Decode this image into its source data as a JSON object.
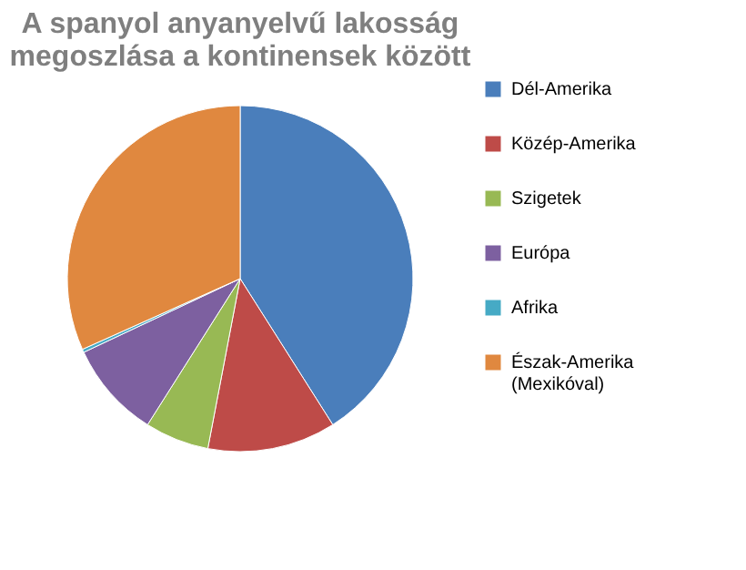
{
  "chart_data": {
    "type": "pie",
    "title": "A spanyol anyanyelvű lakosság megoszlása a kontinensek között",
    "categories": [
      "Dél-Amerika",
      "Közép-Amerika",
      "Szigetek",
      "Európa",
      "Afrika",
      "Észak-Amerika (Mexikóval)"
    ],
    "values": [
      41,
      12,
      6,
      9,
      0.3,
      31.7
    ],
    "colors": [
      "#4a7ebb",
      "#be4b48",
      "#98b954",
      "#7d60a0",
      "#46aac5",
      "#e0883f"
    ],
    "legend": "right"
  }
}
